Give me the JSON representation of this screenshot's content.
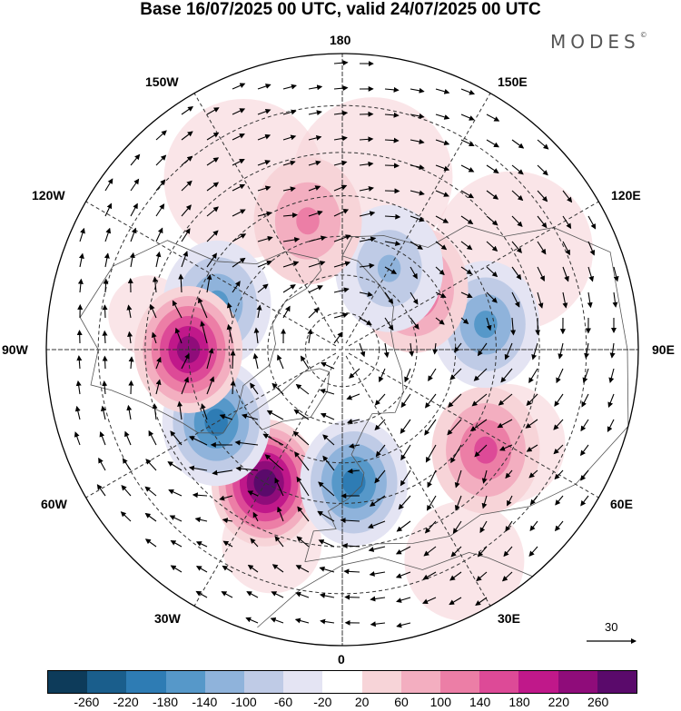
{
  "title": "Base 16/07/2025 00 UTC, valid 24/07/2025 00 UTC",
  "logo": "MODES",
  "logo_mark": "©",
  "map": {
    "projection": "north-polar-stereographic",
    "longitude_labels": {
      "top": "180",
      "bottom": "0",
      "left": "90W",
      "right": "90E",
      "upper_left_1": "150W",
      "upper_left_2": "120W",
      "upper_right_1": "150E",
      "upper_right_2": "120E",
      "lower_left_1": "60W",
      "lower_left_2": "30W",
      "lower_right_1": "60E",
      "lower_right_2": "30E"
    },
    "reference_vector_label": "30",
    "anomaly_centers": [
      {
        "lon": -30,
        "lat": 50,
        "sign": "positive",
        "value": 240
      },
      {
        "lon": -60,
        "lat": 52,
        "sign": "negative",
        "value": -180
      },
      {
        "lon": -110,
        "lat": 55,
        "sign": "negative",
        "value": -140
      },
      {
        "lon": -90,
        "lat": 50,
        "sign": "positive",
        "value": 200
      },
      {
        "lon": 5,
        "lat": 55,
        "sign": "negative",
        "value": -160
      },
      {
        "lon": 55,
        "lat": 45,
        "sign": "positive",
        "value": 140
      },
      {
        "lon": 100,
        "lat": 52,
        "sign": "negative",
        "value": -120
      },
      {
        "lon": 130,
        "lat": 65,
        "sign": "positive",
        "value": 120
      },
      {
        "lon": 150,
        "lat": 65,
        "sign": "negative",
        "value": -100
      },
      {
        "lon": -165,
        "lat": 55,
        "sign": "positive",
        "value": 80
      }
    ],
    "colors": {
      "land_outline": "#555555",
      "grid": "#333333"
    }
  },
  "colorbar": {
    "ticks": [
      "-260",
      "-220",
      "-180",
      "-140",
      "-100",
      "-60",
      "-20",
      "20",
      "60",
      "100",
      "140",
      "180",
      "220",
      "260"
    ],
    "colors": [
      "#0d3b5a",
      "#1a5e8c",
      "#2e7cb4",
      "#5698c9",
      "#8fb3db",
      "#bfcbe6",
      "#e4e4f3",
      "#ffffff",
      "#f7d4d8",
      "#f3aec0",
      "#ec7ea6",
      "#dd4a97",
      "#c0188a",
      "#8f0c7a",
      "#5a0a6b"
    ]
  }
}
